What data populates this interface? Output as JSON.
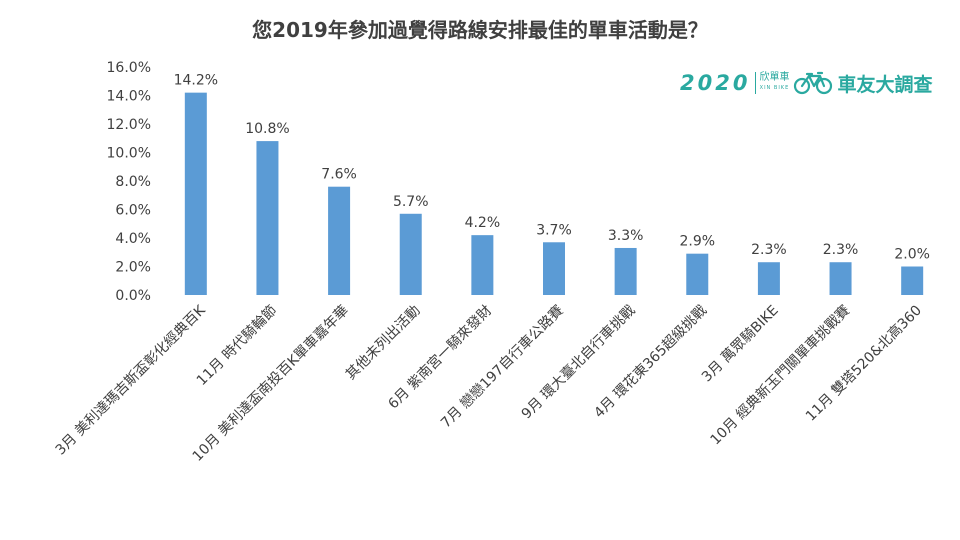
{
  "logo": {
    "year": "2020",
    "brand": "欣單車",
    "brand_sub": "XIN BIKE",
    "text": "車友大調查",
    "bike_icon": "bicycle-icon"
  },
  "colors": {
    "bar": "#5b9bd5",
    "text": "#404040",
    "logo": "#2aa9a0"
  },
  "chart_data": {
    "type": "bar",
    "title": "您2019年參加過覺得路線安排最佳的單車活動是？",
    "xlabel": "",
    "ylabel": "",
    "ylim": [
      0,
      16
    ],
    "yticks": [
      "0.0%",
      "2.0%",
      "4.0%",
      "6.0%",
      "8.0%",
      "10.0%",
      "12.0%",
      "14.0%",
      "16.0%"
    ],
    "grid": false,
    "legend": "none",
    "categories": [
      "3月 美利達瑪吉斯盃彰化經典百K",
      "11月 時代騎輪節",
      "10月 美利達盃南投百K單車嘉年華",
      "其他未列出活動",
      "6月 紫南宮一騎來發財",
      "7月 戀戀197自行車公路賽",
      "9月 環大臺北自行車挑戰",
      "4月 環花東365超級挑戰",
      "3月 萬眾騎BIKE",
      "10月 經典新玉門關單車挑戰賽",
      "11月 雙塔520&北高360"
    ],
    "values": [
      14.2,
      10.8,
      7.6,
      5.7,
      4.2,
      3.7,
      3.3,
      2.9,
      2.3,
      2.3,
      2.0
    ],
    "data_labels": [
      "14.2%",
      "10.8%",
      "7.6%",
      "5.7%",
      "4.2%",
      "3.7%",
      "3.3%",
      "2.9%",
      "2.3%",
      "2.3%",
      "2.0%"
    ]
  }
}
